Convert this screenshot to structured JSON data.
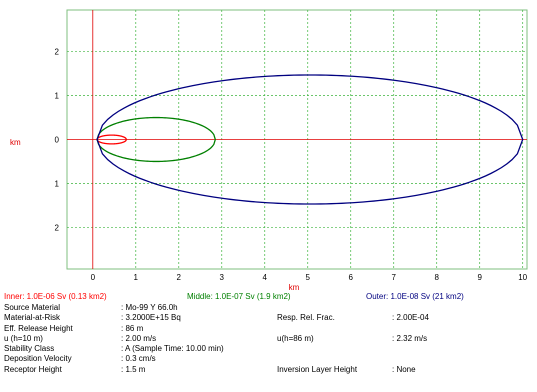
{
  "chart_data": {
    "type": "line",
    "title": "",
    "xlabel": "km",
    "ylabel": "km",
    "xlim": [
      -0.6,
      10.1
    ],
    "ylim": [
      -2.95,
      2.95
    ],
    "x_ticks": [
      0,
      1,
      2,
      3,
      4,
      5,
      6,
      7,
      8,
      9,
      10
    ],
    "y_ticks": [
      {
        "value": 2,
        "label": "2"
      },
      {
        "value": 1,
        "label": "1"
      },
      {
        "value": 0,
        "label": "0"
      },
      {
        "value": -1,
        "label": "1"
      },
      {
        "value": -2,
        "label": "2"
      }
    ],
    "grid": true,
    "series": [
      {
        "name": "Inner: 1.0E-06 Sv (0.13 km2)",
        "color": "#ff0000",
        "x_start": 0.1,
        "x_end": 0.78,
        "half_width_max": 0.1
      },
      {
        "name": "Middle: 1.0E-07 Sv (1.9 km2)",
        "color": "#008000",
        "x_start": 0.1,
        "x_end": 2.85,
        "half_width_max": 0.5
      },
      {
        "name": "Outer: 1.0E-08 Sv (21 km2)",
        "color": "#000080",
        "x_start": 0.1,
        "x_end": 10.0,
        "half_width_max": 1.47
      }
    ]
  },
  "legend": {
    "inner": {
      "text": "Inner: 1.0E-06 Sv (0.13 km2)",
      "color": "#ff0000"
    },
    "middle": {
      "text": "Middle: 1.0E-07 Sv (1.9 km2)",
      "color": "#008000"
    },
    "outer": {
      "text": "Outer: 1.0E-08 Sv (21 km2)",
      "color": "#000080"
    }
  },
  "info": {
    "source_material": {
      "label": "Source Material",
      "value": ": Mo-99  Y  66.0h"
    },
    "material_at_risk": {
      "label": "Material-at-Risk",
      "value": ": 3.2000E+15 Bq"
    },
    "resp_rel_frac": {
      "label": "Resp. Rel. Frac.",
      "value": ": 2.00E-04"
    },
    "eff_release_height": {
      "label": "Eff. Release Height",
      "value": ": 86 m"
    },
    "u10": {
      "label": "u (h=10 m)",
      "value": ": 2.00 m/s"
    },
    "u86": {
      "label": "u(h=86 m)",
      "value": ": 2.32 m/s"
    },
    "stability_class": {
      "label": "Stability Class",
      "value": ": A (Sample Time: 10.00 min)"
    },
    "deposition_velocity": {
      "label": "Deposition Velocity",
      "value": ": 0.3 cm/s"
    },
    "receptor_height": {
      "label": "Receptor Height",
      "value": ": 1.5 m"
    },
    "inversion_layer_height": {
      "label": "Inversion Layer Height",
      "value": ": None"
    }
  }
}
